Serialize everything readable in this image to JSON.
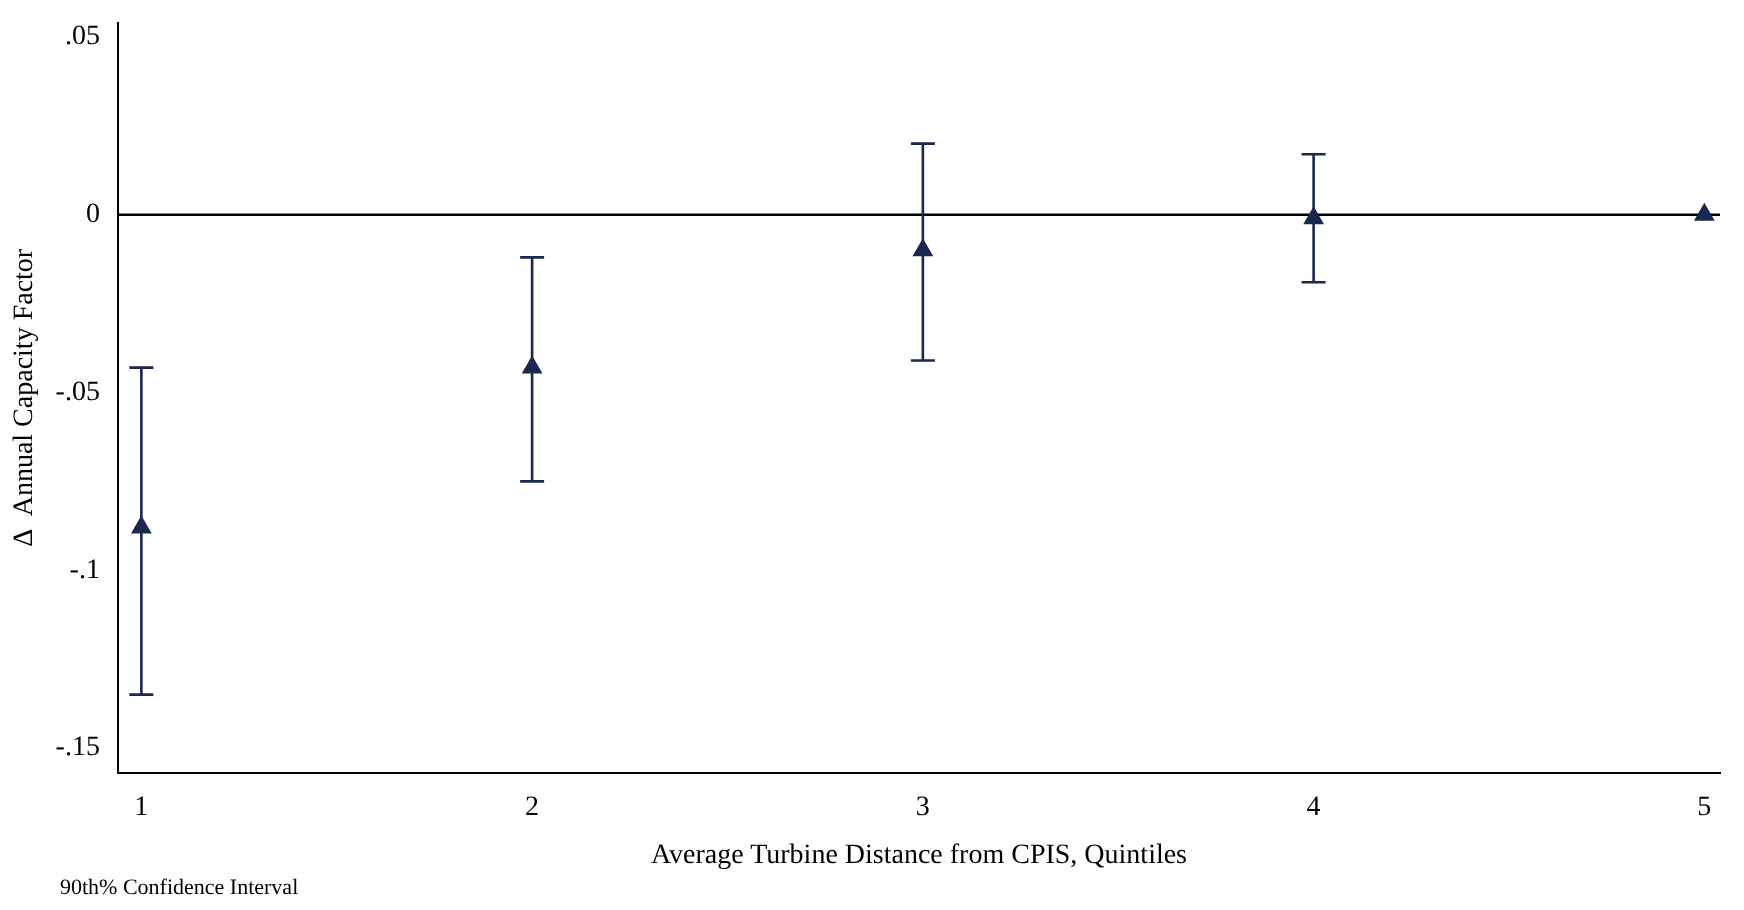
{
  "chart_data": {
    "type": "scatter",
    "xlabel": "Average Turbine Distance from CPIS, Quintiles",
    "ylabel": "Δ  Annual Capacity Factor",
    "x": [
      1,
      2,
      3,
      4,
      5
    ],
    "series": [
      {
        "color": "#1a2850",
        "values": [
          -0.088,
          -0.043,
          -0.01,
          -0.001,
          0
        ],
        "errors": [
          [
            -0.135,
            -0.043
          ],
          [
            -0.075,
            -0.012
          ],
          [
            -0.041,
            0.02
          ],
          [
            -0.019,
            0.017
          ],
          null
        ]
      }
    ],
    "xlim": [
      0.94,
      5.04
    ],
    "xticks": [
      1,
      2,
      3,
      4,
      5
    ],
    "ylim": [
      -0.157,
      0.054
    ],
    "yticks": [
      {
        "value": 0.05,
        "label": ".05"
      },
      0,
      {
        "value": -0.05,
        "label": "-.05"
      },
      {
        "value": -0.1,
        "label": "-.1"
      },
      {
        "value": -0.15,
        "label": "-.15"
      }
    ],
    "ref_lines": [
      {
        "axis": "y",
        "value": 0,
        "color": "#000000"
      }
    ],
    "marker": "triangle",
    "grid": false,
    "legend": false,
    "annotations": [
      "90th% Confidence Interval"
    ]
  }
}
